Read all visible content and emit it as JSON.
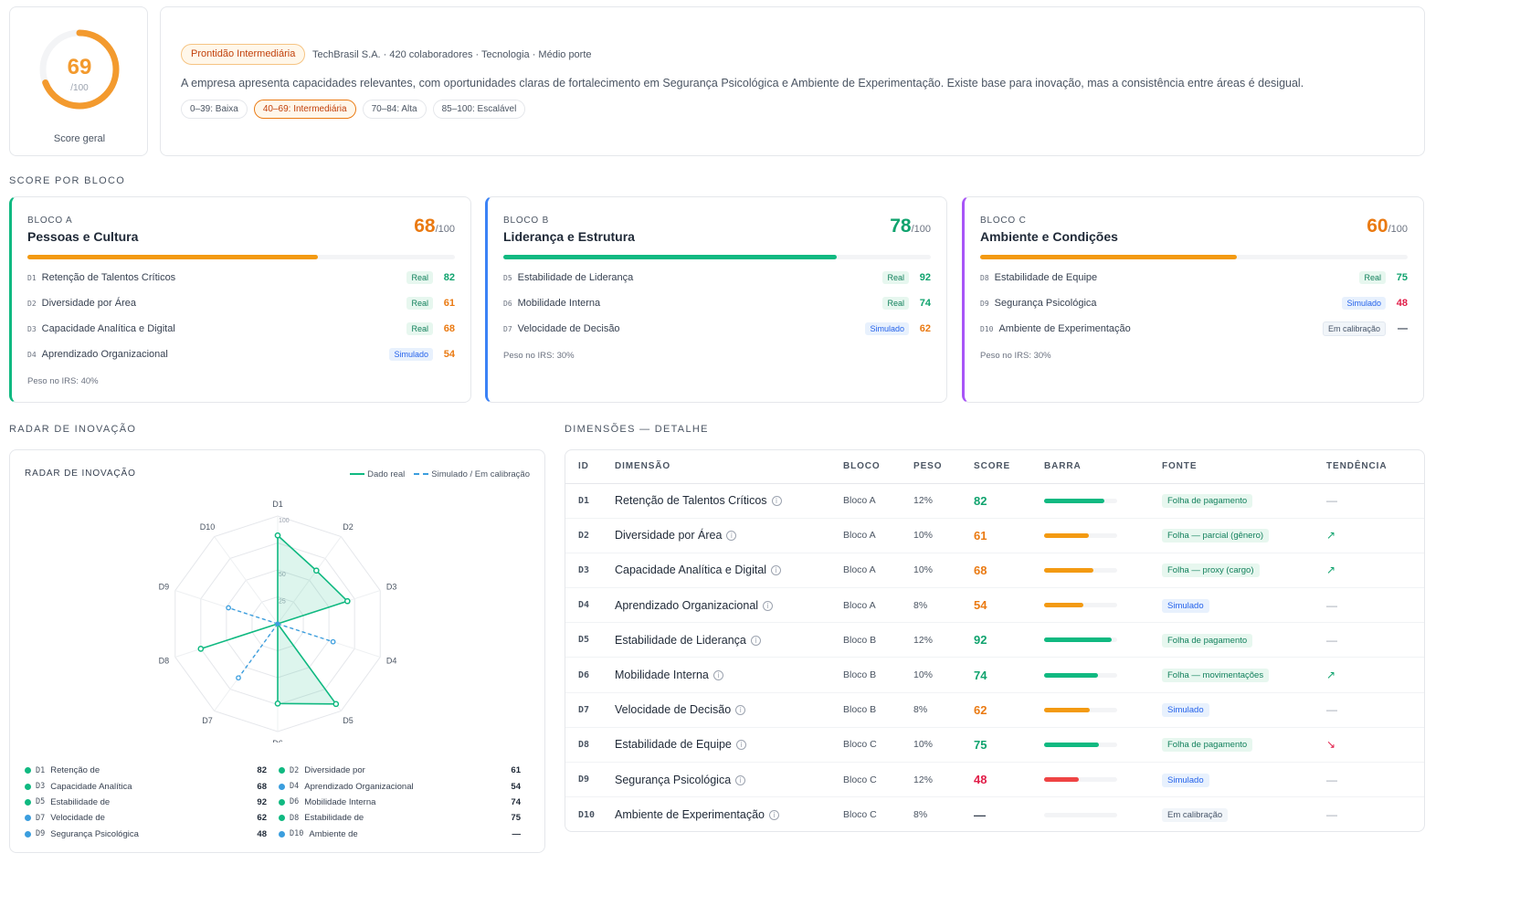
{
  "overall": {
    "score": 69,
    "max": "/100",
    "label": "Score geral",
    "fraction": 0.69,
    "color": "#f39a2e"
  },
  "summary": {
    "badge": "Prontidão Intermediária",
    "company": "TechBrasil S.A. · 420 colaboradores · Tecnologia · Médio porte",
    "text": "A empresa apresenta capacidades relevantes, com oportunidades claras de fortalecimento em Segurança Psicológica e Ambiente de Experimentação. Existe base para inovação, mas a consistência entre áreas é desigual.",
    "ranges": [
      "0–39: Baixa",
      "40–69: Intermediária",
      "70–84: Alta",
      "85–100: Escalável"
    ]
  },
  "sections": {
    "blocks": "SCORE POR BLOCO",
    "radar": "RADAR DE INOVAÇÃO",
    "detail": "DIMENSÕES — DETALHE"
  },
  "blocks": [
    {
      "tag": "BLOCO A",
      "title": "Pessoas e Cultura",
      "score": "68",
      "max": "/100",
      "fill": 0.68,
      "color": "#f39a12",
      "accent": "#10b981",
      "score_color": "#ea7a12",
      "dims": [
        {
          "code": "D1",
          "name": "Retenção de Talentos Críticos",
          "source": "Real",
          "kind": "real",
          "value": "82",
          "color": "#10a36e"
        },
        {
          "code": "D2",
          "name": "Diversidade por Área",
          "source": "Real",
          "kind": "real",
          "value": "61",
          "color": "#ea7a12"
        },
        {
          "code": "D3",
          "name": "Capacidade Analítica e Digital",
          "source": "Real",
          "kind": "real",
          "value": "68",
          "color": "#ea7a12"
        },
        {
          "code": "D4",
          "name": "Aprendizado Organizacional",
          "source": "Simulado",
          "kind": "sim",
          "value": "54",
          "color": "#ea7a12"
        }
      ],
      "weight": "Peso no IRS: 40%"
    },
    {
      "tag": "BLOCO B",
      "title": "Liderança e Estrutura",
      "score": "78",
      "max": "/100",
      "fill": 0.78,
      "color": "#10b981",
      "accent": "#3b82f6",
      "score_color": "#10a36e",
      "dims": [
        {
          "code": "D5",
          "name": "Estabilidade de Liderança",
          "source": "Real",
          "kind": "real",
          "value": "92",
          "color": "#10a36e"
        },
        {
          "code": "D6",
          "name": "Mobilidade Interna",
          "source": "Real",
          "kind": "real",
          "value": "74",
          "color": "#10a36e"
        },
        {
          "code": "D7",
          "name": "Velocidade de Decisão",
          "source": "Simulado",
          "kind": "sim",
          "value": "62",
          "color": "#ea7a12"
        }
      ],
      "weight": "Peso no IRS: 30%"
    },
    {
      "tag": "BLOCO C",
      "title": "Ambiente e Condições",
      "score": "60",
      "max": "/100",
      "fill": 0.6,
      "color": "#f39a12",
      "accent": "#a855f7",
      "score_color": "#ea7a12",
      "dims": [
        {
          "code": "D8",
          "name": "Estabilidade de Equipe",
          "source": "Real",
          "kind": "real",
          "value": "75",
          "color": "#10a36e"
        },
        {
          "code": "D9",
          "name": "Segurança Psicológica",
          "source": "Simulado",
          "kind": "sim",
          "value": "48",
          "color": "#e11d48"
        },
        {
          "code": "D10",
          "name": "Ambiente de Experimentação",
          "source": "Em calibração",
          "kind": "cal",
          "value": "—",
          "color": "#374151"
        }
      ],
      "weight": "Peso no IRS: 30%"
    }
  ],
  "radar": {
    "title": "RADAR DE INOVAÇÃO",
    "legend_real": "Dado real",
    "legend_sim": "Simulado / Em calibração",
    "axes": [
      "D1",
      "D2",
      "D3",
      "D4",
      "D5",
      "D6",
      "D7",
      "D8",
      "D9",
      "D10"
    ],
    "ring_labels": [
      "25",
      "50",
      "100"
    ],
    "values": [
      82,
      61,
      68,
      54,
      92,
      74,
      62,
      75,
      48,
      0
    ],
    "real": [
      true,
      true,
      true,
      false,
      true,
      true,
      false,
      true,
      false,
      false
    ],
    "real_color": "#10b981",
    "sim_color": "#3b9ede",
    "list_left": [
      {
        "code": "D1",
        "label": "Retenção de",
        "value": "82",
        "color": "#10b981"
      },
      {
        "code": "D3",
        "label": "Capacidade Analítica",
        "value": "68",
        "color": "#10b981"
      },
      {
        "code": "D5",
        "label": "Estabilidade de",
        "value": "92",
        "color": "#10b981"
      },
      {
        "code": "D7",
        "label": "Velocidade de",
        "value": "62",
        "color": "#3b9ede"
      },
      {
        "code": "D9",
        "label": "Segurança Psicológica",
        "value": "48",
        "color": "#3b9ede"
      }
    ],
    "list_right": [
      {
        "code": "D2",
        "label": "Diversidade por",
        "value": "61",
        "color": "#10b981"
      },
      {
        "code": "D4",
        "label": "Aprendizado Organizacional",
        "value": "54",
        "color": "#3b9ede"
      },
      {
        "code": "D6",
        "label": "Mobilidade Interna",
        "value": "74",
        "color": "#10b981"
      },
      {
        "code": "D8",
        "label": "Estabilidade de",
        "value": "75",
        "color": "#10b981"
      },
      {
        "code": "D10",
        "label": "Ambiente de",
        "value": "—",
        "color": "#3b9ede"
      }
    ]
  },
  "table": {
    "headers": [
      "ID",
      "DIMENSÃO",
      "BLOCO",
      "PESO",
      "SCORE",
      "BARRA",
      "FONTE",
      "TENDÊNCIA"
    ],
    "rows": [
      {
        "id": "D1",
        "name": "Retenção de Talentos Críticos",
        "block": "Bloco A",
        "weight": "12%",
        "score": "82",
        "fill": 0.82,
        "color": "#10b981",
        "score_color": "#10a36e",
        "source": "Folha de pagamento",
        "kind": "real",
        "trend": "—",
        "trend_kind": "flat"
      },
      {
        "id": "D2",
        "name": "Diversidade por Área",
        "block": "Bloco A",
        "weight": "10%",
        "score": "61",
        "fill": 0.61,
        "color": "#f39a12",
        "score_color": "#ea7a12",
        "source": "Folha — parcial (gênero)",
        "kind": "real",
        "trend": "↗",
        "trend_kind": "up"
      },
      {
        "id": "D3",
        "name": "Capacidade Analítica e Digital",
        "block": "Bloco A",
        "weight": "10%",
        "score": "68",
        "fill": 0.68,
        "color": "#f39a12",
        "score_color": "#ea7a12",
        "source": "Folha — proxy (cargo)",
        "kind": "real",
        "trend": "↗",
        "trend_kind": "up"
      },
      {
        "id": "D4",
        "name": "Aprendizado Organizacional",
        "block": "Bloco A",
        "weight": "8%",
        "score": "54",
        "fill": 0.54,
        "color": "#f39a12",
        "score_color": "#ea7a12",
        "source": "Simulado",
        "kind": "sim",
        "trend": "—",
        "trend_kind": "flat"
      },
      {
        "id": "D5",
        "name": "Estabilidade de Liderança",
        "block": "Bloco B",
        "weight": "12%",
        "score": "92",
        "fill": 0.92,
        "color": "#10b981",
        "score_color": "#10a36e",
        "source": "Folha de pagamento",
        "kind": "real",
        "trend": "—",
        "trend_kind": "flat"
      },
      {
        "id": "D6",
        "name": "Mobilidade Interna",
        "block": "Bloco B",
        "weight": "10%",
        "score": "74",
        "fill": 0.74,
        "color": "#10b981",
        "score_color": "#10a36e",
        "source": "Folha — movimentações",
        "kind": "real",
        "trend": "↗",
        "trend_kind": "up"
      },
      {
        "id": "D7",
        "name": "Velocidade de Decisão",
        "block": "Bloco B",
        "weight": "8%",
        "score": "62",
        "fill": 0.62,
        "color": "#f39a12",
        "score_color": "#ea7a12",
        "source": "Simulado",
        "kind": "sim",
        "trend": "—",
        "trend_kind": "flat"
      },
      {
        "id": "D8",
        "name": "Estabilidade de Equipe",
        "block": "Bloco C",
        "weight": "10%",
        "score": "75",
        "fill": 0.75,
        "color": "#10b981",
        "score_color": "#10a36e",
        "source": "Folha de pagamento",
        "kind": "real",
        "trend": "↘",
        "trend_kind": "down"
      },
      {
        "id": "D9",
        "name": "Segurança Psicológica",
        "block": "Bloco C",
        "weight": "12%",
        "score": "48",
        "fill": 0.48,
        "color": "#ef4444",
        "score_color": "#e11d48",
        "source": "Simulado",
        "kind": "sim",
        "trend": "—",
        "trend_kind": "flat"
      },
      {
        "id": "D10",
        "name": "Ambiente de Experimentação",
        "block": "Bloco C",
        "weight": "8%",
        "score": "—",
        "fill": 0,
        "color": "#e5e7eb",
        "score_color": "#374151",
        "source": "Em calibração",
        "kind": "cal",
        "trend": "—",
        "trend_kind": "flat"
      }
    ]
  }
}
